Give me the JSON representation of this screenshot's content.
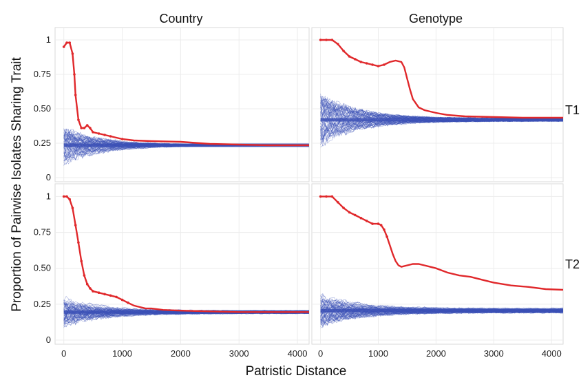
{
  "chart_data": {
    "type": "line",
    "ylabel": "Proportion of Pairwise Isolates Sharing Trait",
    "xlabel": "Patristic Distance",
    "column_labels": [
      "Country",
      "Genotype"
    ],
    "row_labels": [
      "T1",
      "T2"
    ],
    "xlim": [
      -150,
      4200
    ],
    "ylim": [
      0,
      1.05
    ],
    "x_ticks": [
      0,
      1000,
      2000,
      3000,
      4000
    ],
    "x_tick_labels": [
      "0",
      "1000",
      "2000",
      "3000",
      "4000"
    ],
    "y_ticks": [
      0,
      0.25,
      0.5,
      0.75,
      1
    ],
    "y_tick_labels": [
      "0",
      "0.25",
      "0.50",
      "0.75",
      "1"
    ],
    "grid": true,
    "colors": {
      "observed": "#e0282b",
      "null": "#3a4fb5"
    },
    "panels": [
      {
        "column": "Country",
        "row": "T1",
        "observed": {
          "x": [
            0,
            50,
            100,
            150,
            180,
            200,
            250,
            300,
            350,
            400,
            450,
            500,
            600,
            700,
            800,
            1000,
            1200,
            1500,
            2000,
            2500,
            3000,
            3500,
            4000,
            4200
          ],
          "y": [
            0.95,
            0.98,
            0.98,
            0.9,
            0.75,
            0.6,
            0.42,
            0.36,
            0.36,
            0.38,
            0.36,
            0.33,
            0.32,
            0.31,
            0.3,
            0.28,
            0.27,
            0.265,
            0.26,
            0.245,
            0.24,
            0.235,
            0.235,
            0.235
          ]
        },
        "null": {
          "center": 0.235,
          "spread_start": 0.12,
          "spread_end": 0.005,
          "decay": 650
        }
      },
      {
        "column": "Genotype",
        "row": "T1",
        "observed": {
          "x": [
            0,
            100,
            200,
            300,
            400,
            500,
            600,
            700,
            800,
            900,
            1000,
            1100,
            1200,
            1300,
            1400,
            1450,
            1500,
            1550,
            1600,
            1700,
            1800,
            2000,
            2200,
            2500,
            3000,
            3500,
            4000,
            4200
          ],
          "y": [
            1,
            1,
            1,
            0.97,
            0.92,
            0.88,
            0.86,
            0.84,
            0.83,
            0.82,
            0.81,
            0.82,
            0.84,
            0.85,
            0.84,
            0.8,
            0.72,
            0.64,
            0.57,
            0.51,
            0.49,
            0.47,
            0.455,
            0.445,
            0.44,
            0.435,
            0.435,
            0.435
          ]
        },
        "null": {
          "center": 0.42,
          "spread_start": 0.16,
          "spread_end": 0.01,
          "decay": 650
        }
      },
      {
        "column": "Country",
        "row": "T2",
        "observed": {
          "x": [
            0,
            50,
            100,
            150,
            200,
            250,
            300,
            350,
            400,
            450,
            500,
            600,
            700,
            800,
            900,
            1000,
            1100,
            1200,
            1300,
            1400,
            1500,
            1700,
            2000,
            2500,
            3000,
            3500,
            4000,
            4200
          ],
          "y": [
            1,
            1,
            0.98,
            0.92,
            0.8,
            0.68,
            0.55,
            0.45,
            0.39,
            0.36,
            0.34,
            0.33,
            0.32,
            0.31,
            0.3,
            0.28,
            0.26,
            0.24,
            0.23,
            0.22,
            0.22,
            0.21,
            0.205,
            0.2,
            0.195,
            0.195,
            0.195,
            0.195
          ]
        },
        "null": {
          "center": 0.195,
          "spread_start": 0.09,
          "spread_end": 0.01,
          "decay": 650
        }
      },
      {
        "column": "Genotype",
        "row": "T2",
        "observed": {
          "x": [
            0,
            100,
            200,
            300,
            400,
            500,
            600,
            700,
            800,
            900,
            1000,
            1050,
            1100,
            1150,
            1200,
            1250,
            1300,
            1350,
            1400,
            1500,
            1600,
            1700,
            1800,
            1900,
            2000,
            2200,
            2400,
            2600,
            2800,
            3000,
            3300,
            3600,
            3900,
            4200
          ],
          "y": [
            1,
            1,
            1,
            0.96,
            0.92,
            0.89,
            0.87,
            0.85,
            0.83,
            0.81,
            0.81,
            0.8,
            0.77,
            0.72,
            0.66,
            0.6,
            0.55,
            0.52,
            0.51,
            0.52,
            0.53,
            0.53,
            0.52,
            0.51,
            0.5,
            0.47,
            0.45,
            0.44,
            0.42,
            0.4,
            0.38,
            0.37,
            0.355,
            0.35
          ]
        },
        "null": {
          "center": 0.205,
          "spread_start": 0.1,
          "spread_end": 0.015,
          "decay": 650
        }
      }
    ]
  }
}
